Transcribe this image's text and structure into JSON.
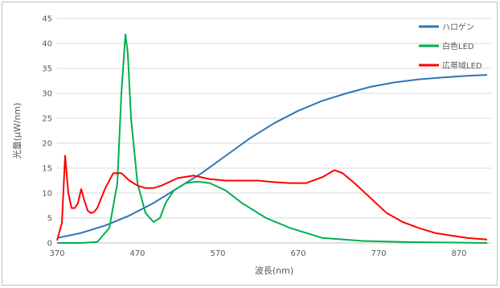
{
  "chart_data": {
    "type": "line",
    "title": "",
    "xlabel": "波長(nm)",
    "ylabel": "光量(μW/nm)",
    "xlim": [
      370,
      910
    ],
    "ylim": [
      0,
      45
    ],
    "x_ticks": [
      370,
      470,
      570,
      670,
      770,
      870
    ],
    "y_ticks": [
      0,
      5,
      10,
      15,
      20,
      25,
      30,
      35,
      40,
      45
    ],
    "grid": "horizontal",
    "legend_position": "top-right",
    "series": [
      {
        "name": "ハロゲン",
        "color": "#2e75b6",
        "x": [
          370,
          400,
          430,
          460,
          490,
          520,
          550,
          580,
          610,
          640,
          670,
          700,
          730,
          760,
          790,
          820,
          850,
          880,
          905
        ],
        "y": [
          1.0,
          2.0,
          3.5,
          5.5,
          8.0,
          11.0,
          14.0,
          17.5,
          21.0,
          24.0,
          26.5,
          28.5,
          30.0,
          31.3,
          32.2,
          32.8,
          33.2,
          33.5,
          33.7
        ]
      },
      {
        "name": "白色LED",
        "color": "#00b050",
        "x": [
          370,
          400,
          420,
          435,
          445,
          450,
          455,
          458,
          462,
          470,
          480,
          490,
          498,
          505,
          515,
          530,
          545,
          560,
          580,
          600,
          630,
          660,
          700,
          750,
          800,
          850,
          905
        ],
        "y": [
          0,
          0,
          0.2,
          3.0,
          12.0,
          30.0,
          41.8,
          38.0,
          25.0,
          12.0,
          6.0,
          4.2,
          5.0,
          8.0,
          10.5,
          12.0,
          12.3,
          12.0,
          10.5,
          8.0,
          5.0,
          3.0,
          1.0,
          0.4,
          0.2,
          0.1,
          0
        ]
      },
      {
        "name": "広帯域LED",
        "color": "#ff0000",
        "x": [
          370,
          376,
          380,
          384,
          388,
          392,
          396,
          400,
          404,
          408,
          412,
          416,
          420,
          430,
          440,
          450,
          460,
          470,
          480,
          490,
          500,
          520,
          540,
          560,
          580,
          600,
          620,
          640,
          660,
          680,
          700,
          715,
          725,
          740,
          760,
          780,
          800,
          820,
          840,
          860,
          880,
          895,
          905
        ],
        "y": [
          0.5,
          4.0,
          17.5,
          10.0,
          7.0,
          7.0,
          8.0,
          10.8,
          8.5,
          6.5,
          6.0,
          6.2,
          7.0,
          11.0,
          14.0,
          14.0,
          12.5,
          11.5,
          11.0,
          11.0,
          11.5,
          13.0,
          13.5,
          12.8,
          12.5,
          12.5,
          12.5,
          12.2,
          12.0,
          12.0,
          13.2,
          14.6,
          14.0,
          12.0,
          9.0,
          6.0,
          4.2,
          3.0,
          2.0,
          1.5,
          1.0,
          0.8,
          0.7
        ]
      }
    ]
  }
}
